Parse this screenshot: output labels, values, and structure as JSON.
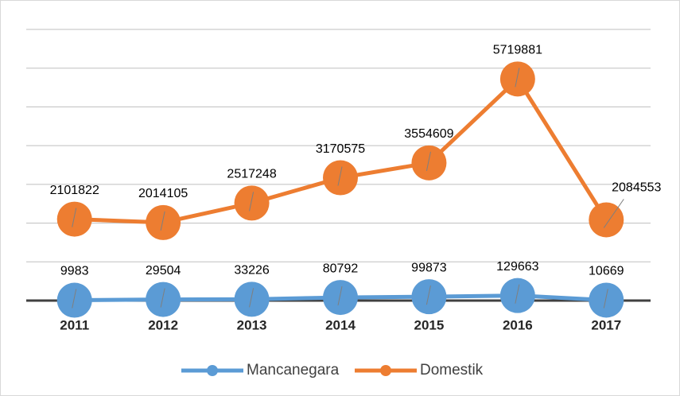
{
  "chart_data": {
    "type": "line",
    "categories": [
      "2011",
      "2012",
      "2013",
      "2014",
      "2015",
      "2016",
      "2017"
    ],
    "series": [
      {
        "name": "Mancanegara",
        "color": "#5b9bd5",
        "values": [
          9983,
          29504,
          33226,
          80792,
          99873,
          129663,
          10669
        ]
      },
      {
        "name": "Domestik",
        "color": "#ed7d31",
        "values": [
          2101822,
          2014105,
          2517248,
          3170575,
          3554609,
          5719881,
          2084553
        ]
      }
    ],
    "ylim": [
      0,
      7000000
    ],
    "yticks": [
      0,
      1000000,
      2000000,
      3000000,
      4000000,
      5000000,
      6000000,
      7000000
    ],
    "grid": true
  }
}
